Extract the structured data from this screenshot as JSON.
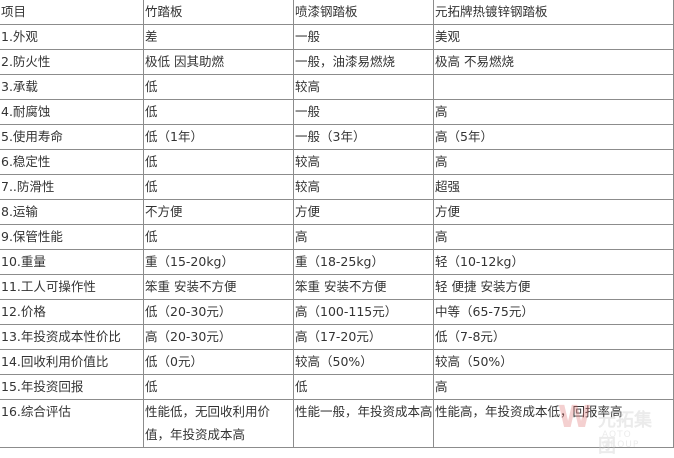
{
  "header": [
    "项目",
    "竹踏板",
    "喷漆钢踏板",
    "元拓牌热镀锌钢踏板"
  ],
  "rows": [
    [
      "1.外观",
      "差",
      "一般",
      "美观"
    ],
    [
      "2.防火性",
      "极低 因其助燃",
      "一般，油漆易燃烧",
      "极高 不易燃烧"
    ],
    [
      "3.承载",
      "低",
      "较高",
      ""
    ],
    [
      "4.耐腐蚀",
      "低",
      "一般",
      "高"
    ],
    [
      "5.使用寿命",
      "低（1年）",
      "一般（3年）",
      "高（5年）"
    ],
    [
      "6.稳定性",
      "低",
      "较高",
      "高"
    ],
    [
      "7..防滑性",
      "低",
      "较高",
      "超强"
    ],
    [
      "8.运输",
      "不方便",
      "方便",
      "方便"
    ],
    [
      "9.保管性能",
      "低",
      "高",
      "高"
    ],
    [
      "10.重量",
      "重（15-20kg）",
      "重（18-25kg）",
      "轻（10-12kg）"
    ],
    [
      "11.工人可操作性",
      "笨重 安装不方便",
      "笨重 安装不方便",
      "轻 便捷 安装方便"
    ],
    [
      "12.价格",
      "低（20-30元）",
      "高（100-115元）",
      "中等（65-75元）"
    ],
    [
      "13.年投资成本性价比",
      "高（20-30元）",
      "高（17-20元）",
      "低（7-8元）"
    ],
    [
      "14.回收利用价值比",
      "低（0元）",
      "较高（50%）",
      "较高（50%）"
    ],
    [
      "15.年投资回报",
      "低",
      "低",
      "高"
    ],
    [
      "16.综合评估",
      "性能低，无回收利用价值，年投资成本高",
      "性能一般，年投资成本高",
      "性能高，年投资成本低，回报率高"
    ]
  ],
  "watermark": {
    "cn": "元拓集团",
    "en": "AOTO GROUP"
  }
}
